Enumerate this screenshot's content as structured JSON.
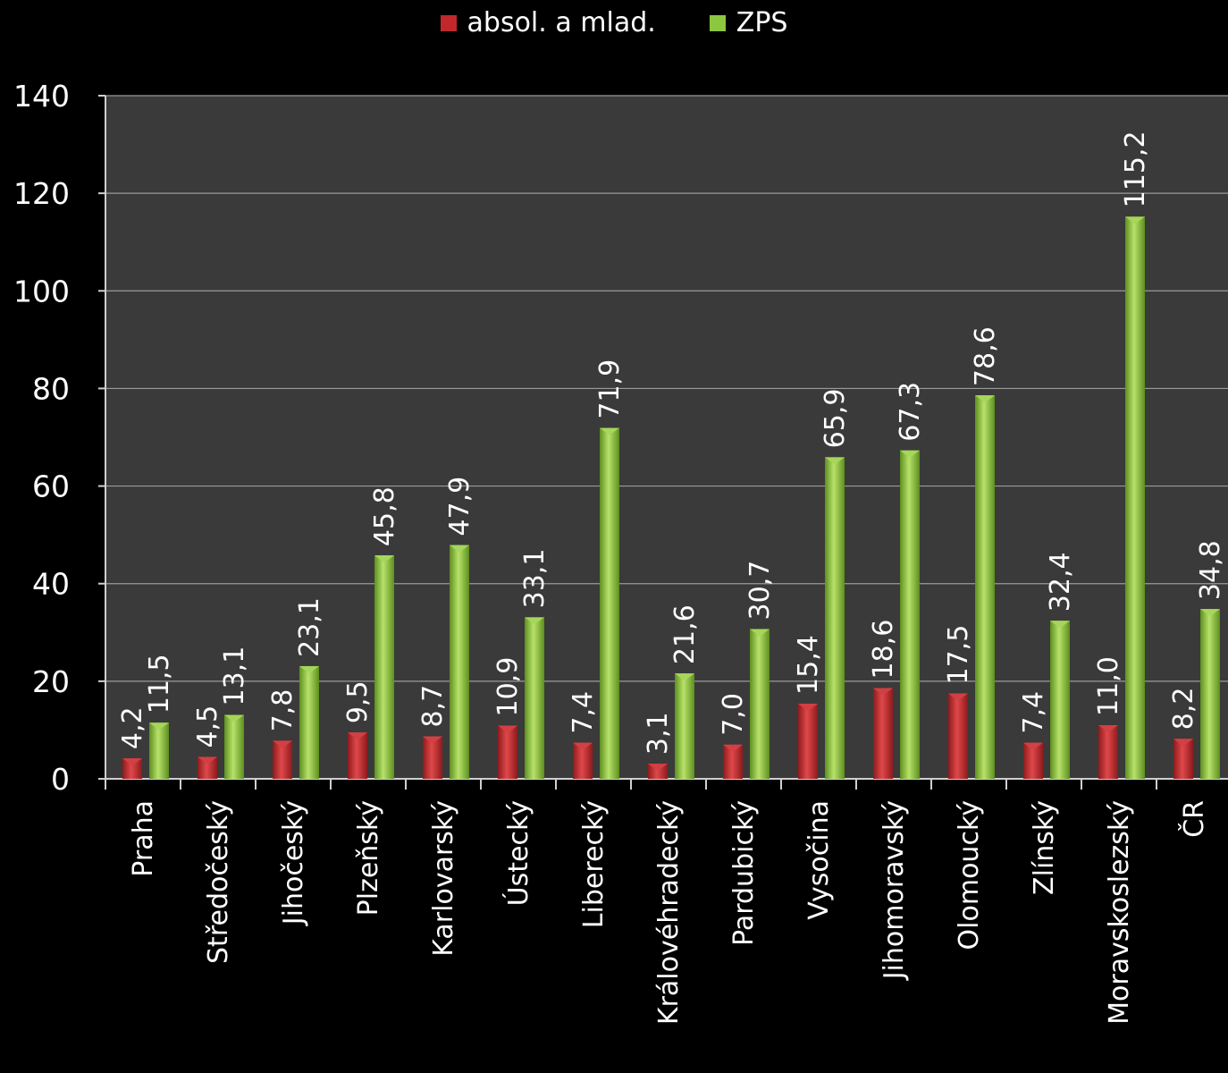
{
  "chart_data": {
    "type": "bar",
    "title": "",
    "xlabel": "",
    "ylabel": "",
    "ylim": [
      0,
      140
    ],
    "yticks": [
      0,
      20,
      40,
      60,
      80,
      100,
      120,
      140
    ],
    "grid": true,
    "legend_position": "top",
    "categories": [
      "Praha",
      "Středočeský",
      "Jihočeský",
      "Plzeňský",
      "Karlovarský",
      "Ústecký",
      "Liberecký",
      "Královéhradecký",
      "Pardubický",
      "Vysočina",
      "Jihomoravský",
      "Olomoucký",
      "Zlínský",
      "Moravskoslezský",
      "ČR"
    ],
    "series": [
      {
        "name": "absol. a mlad.",
        "color": "#c0282b",
        "values": [
          4.2,
          4.5,
          7.8,
          9.5,
          8.7,
          10.9,
          7.4,
          3.1,
          7.0,
          15.4,
          18.6,
          17.5,
          7.4,
          11.0,
          8.2
        ],
        "labels": [
          "4,2",
          "4,5",
          "7,8",
          "9,5",
          "8,7",
          "10,9",
          "7,4",
          "3,1",
          "7,0",
          "15,4",
          "18,6",
          "17,5",
          "7,4",
          "11,0",
          "8,2"
        ]
      },
      {
        "name": "ZPS",
        "color": "#8dc63f",
        "values": [
          11.5,
          13.1,
          23.1,
          45.8,
          47.9,
          33.1,
          71.9,
          21.6,
          30.7,
          65.9,
          67.3,
          78.6,
          32.4,
          115.2,
          34.8
        ],
        "labels": [
          "11,5",
          "13,1",
          "23,1",
          "45,8",
          "47,9",
          "33,1",
          "71,9",
          "21,6",
          "30,7",
          "65,9",
          "67,3",
          "78,6",
          "32,4",
          "115,2",
          "34,8"
        ]
      }
    ]
  }
}
